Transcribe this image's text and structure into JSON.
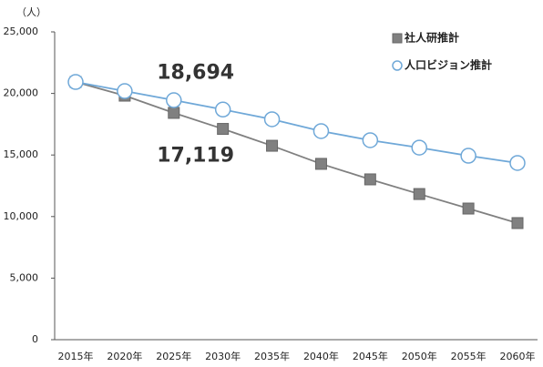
{
  "chart_data": {
    "type": "line",
    "y_unit_label": "（人）",
    "categories": [
      "2015年",
      "2020年",
      "2025年",
      "2030年",
      "2035年",
      "2040年",
      "2045年",
      "2050年",
      "2055年",
      "2060年"
    ],
    "series": [
      {
        "name": "社人研推計",
        "color": "#808080",
        "marker": "square",
        "values": [
          20930,
          19820,
          18420,
          17119,
          15750,
          14280,
          13020,
          11830,
          10650,
          9470
        ],
        "value_labels": [
          null,
          null,
          null,
          "17,119",
          null,
          null,
          null,
          null,
          null,
          null
        ]
      },
      {
        "name": "人口ビジョン推計",
        "color": "#6fa8d8",
        "marker": "circle",
        "values": [
          20930,
          20190,
          19450,
          18694,
          17900,
          16940,
          16200,
          15600,
          14940,
          14350
        ],
        "value_labels": [
          null,
          null,
          null,
          "18,694",
          null,
          null,
          null,
          null,
          null,
          null
        ]
      }
    ],
    "ylim": [
      0,
      25000
    ],
    "yticks": [
      0,
      {
        "value": 5000,
        "label": "5,000"
      },
      {
        "value": 10000,
        "label": "10,000"
      },
      {
        "value": 15000,
        "label": "15,000"
      },
      {
        "value": 20000,
        "label": "20,000"
      },
      {
        "value": 25000,
        "label": "25,000"
      }
    ],
    "legend": "top-right",
    "grid": false
  }
}
